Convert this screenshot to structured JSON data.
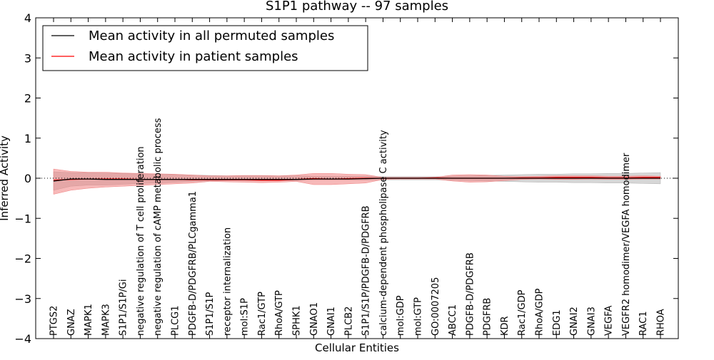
{
  "chart_data": {
    "type": "line",
    "title": "S1P1 pathway -- 97 samples",
    "xlabel": "Cellular Entities",
    "ylabel": "Inferred Activity",
    "ylim": [
      -4,
      4
    ],
    "yticks": [
      -4,
      -3,
      -2,
      -1,
      0,
      1,
      2,
      3,
      4
    ],
    "ytick_labels": [
      "−4",
      "−3",
      "−2",
      "−1",
      "0",
      "1",
      "2",
      "3",
      "4"
    ],
    "legend_position": "top-left",
    "categories": [
      "PTGS2",
      "GNAZ",
      "MAPK1",
      "MAPK3",
      "S1P1/S1P/Gi",
      "negative regulation of T cell proliferation",
      "negative regulation of cAMP metabolic process",
      "PLCG1",
      "PDGFB-D/PDGFRB/PLCgamma1",
      "S1P1/S1P",
      "receptor internalization",
      "mol:S1P",
      "Rac1/GTP",
      "RhoA/GTP",
      "SPHK1",
      "GNAO1",
      "GNAI1",
      "PLCB2",
      "S1P1/S1P/PDGFB-D/PDGFRB",
      "calcium-dependent phospholipase C activity",
      "mol:GDP",
      "mol:GTP",
      "GO:0007205",
      "ABCC1",
      "PDGFB-D/PDGFRB",
      "PDGFRB",
      "KDR",
      "Rac1/GDP",
      "RhoA/GDP",
      "EDG1",
      "GNAI2",
      "GNAI3",
      "VEGFA",
      "VEGFR2 homodimer/VEGFA homodimer",
      "RAC1",
      "RHOA"
    ],
    "series": [
      {
        "name": "Mean activity in all permuted samples",
        "color": "#000000",
        "band_color": "#b0b0b0",
        "values": [
          -0.07,
          -0.02,
          -0.02,
          -0.03,
          -0.03,
          -0.03,
          -0.03,
          -0.03,
          -0.03,
          -0.03,
          -0.03,
          -0.03,
          -0.03,
          -0.03,
          -0.03,
          -0.02,
          -0.02,
          -0.02,
          -0.01,
          0.0,
          0.0,
          0.0,
          0.0,
          0.0,
          0.0,
          0.0,
          0.0,
          0.0,
          0.0,
          0.0,
          0.0,
          0.0,
          0.0,
          0.0,
          0.0,
          0.0
        ],
        "lower": [
          -0.3,
          -0.2,
          -0.17,
          -0.17,
          -0.15,
          -0.13,
          -0.12,
          -0.1,
          -0.08,
          -0.07,
          -0.06,
          -0.06,
          -0.06,
          -0.06,
          -0.06,
          -0.05,
          -0.05,
          -0.05,
          -0.05,
          -0.04,
          -0.04,
          -0.04,
          -0.04,
          -0.05,
          -0.06,
          -0.07,
          -0.08,
          -0.09,
          -0.1,
          -0.1,
          -0.11,
          -0.11,
          -0.12,
          -0.12,
          -0.13,
          -0.14
        ],
        "upper": [
          0.16,
          0.14,
          0.14,
          0.13,
          0.12,
          0.11,
          0.1,
          0.09,
          0.08,
          0.07,
          0.06,
          0.06,
          0.06,
          0.06,
          0.06,
          0.05,
          0.05,
          0.05,
          0.05,
          0.04,
          0.04,
          0.04,
          0.04,
          0.05,
          0.06,
          0.07,
          0.08,
          0.09,
          0.1,
          0.1,
          0.11,
          0.11,
          0.12,
          0.12,
          0.13,
          0.14
        ]
      },
      {
        "name": "Mean activity in patient samples",
        "color": "#ff0000",
        "band_color": "#f08080",
        "values": [
          -0.05,
          -0.03,
          -0.02,
          -0.02,
          -0.02,
          -0.03,
          -0.03,
          -0.03,
          -0.04,
          -0.04,
          -0.04,
          -0.04,
          -0.05,
          -0.05,
          -0.03,
          -0.01,
          -0.02,
          -0.01,
          0.0,
          0.0,
          0.0,
          0.0,
          0.01,
          0.0,
          0.0,
          0.0,
          0.0,
          0.01,
          0.01,
          0.02,
          0.02,
          0.02,
          0.01,
          0.01,
          0.02,
          0.02
        ],
        "lower": [
          -0.4,
          -0.3,
          -0.25,
          -0.22,
          -0.2,
          -0.18,
          -0.16,
          -0.14,
          -0.12,
          -0.08,
          -0.09,
          -0.1,
          -0.11,
          -0.1,
          -0.08,
          -0.16,
          -0.16,
          -0.14,
          -0.12,
          -0.03,
          -0.02,
          -0.02,
          -0.02,
          -0.07,
          -0.1,
          -0.09,
          -0.06,
          -0.03,
          -0.02,
          -0.03,
          -0.03,
          -0.02,
          -0.03,
          -0.03,
          -0.02,
          -0.02
        ],
        "upper": [
          0.23,
          0.17,
          0.15,
          0.15,
          0.13,
          0.12,
          0.11,
          0.1,
          0.08,
          0.06,
          0.06,
          0.07,
          0.07,
          0.06,
          0.08,
          0.12,
          0.12,
          0.1,
          0.09,
          0.02,
          0.02,
          0.02,
          0.02,
          0.08,
          0.09,
          0.08,
          0.05,
          0.04,
          0.05,
          0.06,
          0.06,
          0.06,
          0.05,
          0.05,
          0.06,
          0.05
        ]
      }
    ],
    "reference_line": {
      "y": 0,
      "style": "dotted"
    }
  }
}
